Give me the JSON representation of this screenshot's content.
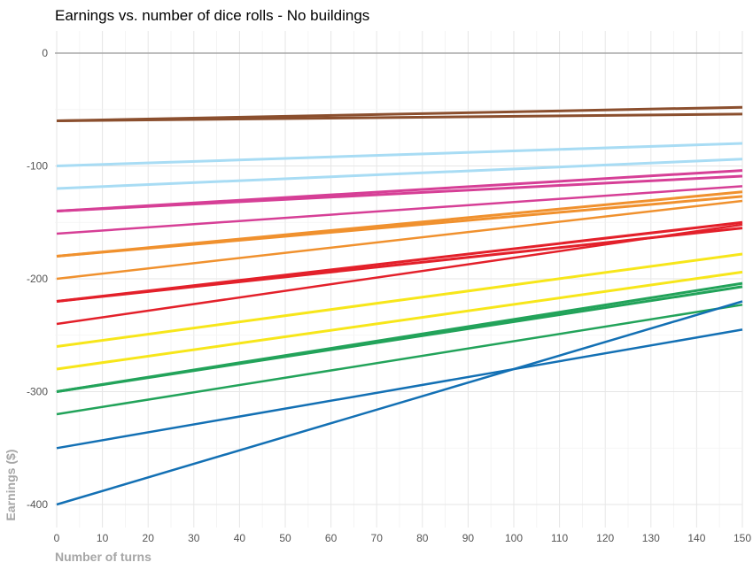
{
  "chart_data": {
    "type": "line",
    "title": "Earnings vs. number of dice rolls - No buildings",
    "xlabel": "Number of turns",
    "ylabel": "Earnings ($)",
    "xlim": [
      0,
      150
    ],
    "ylim": [
      -420,
      20
    ],
    "x_ticks": [
      0,
      10,
      20,
      30,
      40,
      50,
      60,
      70,
      80,
      90,
      100,
      110,
      120,
      130,
      140,
      150
    ],
    "y_ticks": [
      0,
      -100,
      -200,
      -300,
      -400
    ],
    "grid": true,
    "legend": "none",
    "reference_line": {
      "y": 0,
      "color": "#a8a8a8"
    },
    "series": [
      {
        "color": "#8b4f2e",
        "width": 3,
        "points": [
          [
            0,
            -60
          ],
          [
            150,
            -48
          ]
        ]
      },
      {
        "color": "#8b4f2e",
        "width": 3,
        "points": [
          [
            0,
            -60
          ],
          [
            150,
            -54
          ]
        ]
      },
      {
        "color": "#a8dcf4",
        "width": 3,
        "points": [
          [
            0,
            -100
          ],
          [
            150,
            -80
          ]
        ]
      },
      {
        "color": "#a8dcf4",
        "width": 3,
        "points": [
          [
            0,
            -120
          ],
          [
            150,
            -94
          ]
        ]
      },
      {
        "color": "#d63f96",
        "width": 3,
        "points": [
          [
            0,
            -140
          ],
          [
            150,
            -104
          ]
        ]
      },
      {
        "color": "#d63f96",
        "width": 3,
        "points": [
          [
            0,
            -140
          ],
          [
            150,
            -109
          ]
        ]
      },
      {
        "color": "#d63f96",
        "width": 2.5,
        "points": [
          [
            0,
            -160
          ],
          [
            150,
            -118
          ]
        ]
      },
      {
        "color": "#f0912e",
        "width": 3,
        "points": [
          [
            0,
            -180
          ],
          [
            150,
            -123
          ]
        ]
      },
      {
        "color": "#f0912e",
        "width": 3,
        "points": [
          [
            0,
            -180
          ],
          [
            150,
            -127
          ]
        ]
      },
      {
        "color": "#f0912e",
        "width": 2.5,
        "points": [
          [
            0,
            -200
          ],
          [
            150,
            -131
          ]
        ]
      },
      {
        "color": "#e3202a",
        "width": 3,
        "points": [
          [
            0,
            -220
          ],
          [
            150,
            -150
          ]
        ]
      },
      {
        "color": "#e3202a",
        "width": 3,
        "points": [
          [
            0,
            -220
          ],
          [
            150,
            -155
          ]
        ]
      },
      {
        "color": "#e3202a",
        "width": 2.5,
        "points": [
          [
            0,
            -240
          ],
          [
            150,
            -152
          ]
        ]
      },
      {
        "color": "#f7e61a",
        "width": 3,
        "points": [
          [
            0,
            -260
          ],
          [
            150,
            -178
          ]
        ]
      },
      {
        "color": "#f7e61a",
        "width": 3,
        "points": [
          [
            0,
            -280
          ],
          [
            150,
            -194
          ]
        ]
      },
      {
        "color": "#22a35a",
        "width": 3,
        "points": [
          [
            0,
            -300
          ],
          [
            150,
            -204
          ]
        ]
      },
      {
        "color": "#22a35a",
        "width": 3,
        "points": [
          [
            0,
            -300
          ],
          [
            150,
            -207
          ]
        ]
      },
      {
        "color": "#22a35a",
        "width": 2.5,
        "points": [
          [
            0,
            -320
          ],
          [
            150,
            -223
          ]
        ]
      },
      {
        "color": "#1370b4",
        "width": 2.5,
        "points": [
          [
            0,
            -350
          ],
          [
            150,
            -245
          ]
        ]
      },
      {
        "color": "#1370b4",
        "width": 2.5,
        "points": [
          [
            0,
            -400
          ],
          [
            150,
            -220
          ]
        ]
      }
    ]
  }
}
